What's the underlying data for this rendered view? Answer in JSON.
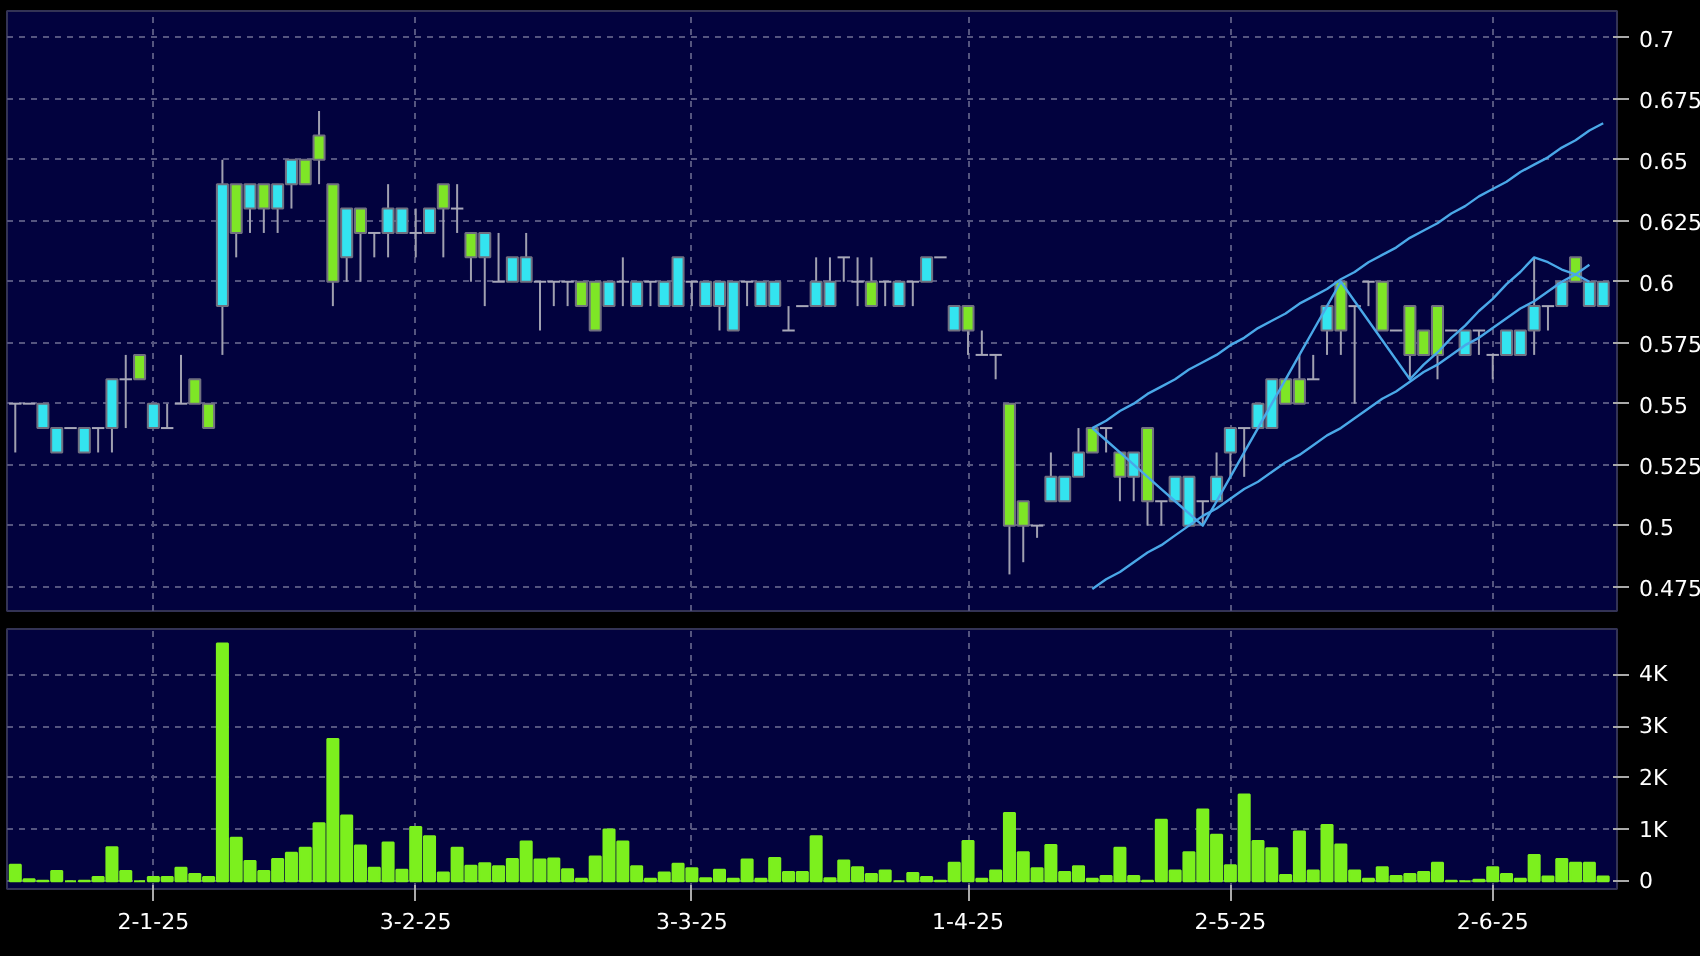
{
  "chart_data": [
    {
      "type": "candlestick",
      "categories": [
        null,
        null,
        null,
        null,
        null,
        null,
        null,
        null,
        null,
        null,
        null,
        null,
        null,
        null,
        null,
        null,
        null,
        null,
        null,
        null,
        null,
        null,
        null,
        null,
        null,
        null,
        null,
        null,
        null,
        null,
        null,
        null,
        null,
        null,
        null,
        null,
        null,
        null,
        null,
        null,
        null,
        null,
        null,
        null,
        null,
        null,
        null,
        null,
        null,
        null,
        null,
        null,
        null,
        null,
        null,
        null,
        null,
        null,
        null,
        null,
        null,
        null,
        null,
        null,
        null,
        null,
        null,
        null,
        null,
        null,
        null,
        null,
        null,
        null,
        null,
        null,
        null,
        null,
        null,
        null,
        null,
        null,
        null,
        null,
        null,
        null,
        null,
        null,
        null,
        null,
        null,
        null,
        null,
        null,
        null,
        null,
        null,
        null,
        null,
        null,
        null,
        null,
        null,
        null,
        null,
        null,
        null,
        null,
        null,
        null,
        null,
        null,
        null,
        null,
        null,
        null
      ],
      "ohlc": [
        [
          0.55,
          0.55,
          0.53,
          0.55
        ],
        [
          0.55,
          0.55,
          0.55,
          0.55
        ],
        [
          0.54,
          0.55,
          0.54,
          0.55
        ],
        [
          0.53,
          0.54,
          0.53,
          0.54
        ],
        [
          0.54,
          0.54,
          0.54,
          0.54
        ],
        [
          0.53,
          0.54,
          0.53,
          0.54
        ],
        [
          0.54,
          0.54,
          0.53,
          0.54
        ],
        [
          0.54,
          0.56,
          0.53,
          0.56
        ],
        [
          0.56,
          0.57,
          0.54,
          0.56
        ],
        [
          0.57,
          0.57,
          0.56,
          0.56
        ],
        [
          0.54,
          0.55,
          0.54,
          0.55
        ],
        [
          0.54,
          0.55,
          0.54,
          0.54
        ],
        [
          0.55,
          0.57,
          0.55,
          0.55
        ],
        [
          0.56,
          0.56,
          0.55,
          0.55
        ],
        [
          0.55,
          0.55,
          0.54,
          0.54
        ],
        [
          0.59,
          0.65,
          0.57,
          0.64
        ],
        [
          0.64,
          0.64,
          0.61,
          0.62
        ],
        [
          0.63,
          0.64,
          0.62,
          0.64
        ],
        [
          0.64,
          0.64,
          0.62,
          0.63
        ],
        [
          0.63,
          0.64,
          0.62,
          0.64
        ],
        [
          0.64,
          0.65,
          0.63,
          0.65
        ],
        [
          0.65,
          0.65,
          0.64,
          0.64
        ],
        [
          0.66,
          0.67,
          0.64,
          0.65
        ],
        [
          0.64,
          0.64,
          0.59,
          0.6
        ],
        [
          0.61,
          0.63,
          0.6,
          0.63
        ],
        [
          0.63,
          0.63,
          0.6,
          0.62
        ],
        [
          0.62,
          0.62,
          0.61,
          0.62
        ],
        [
          0.62,
          0.64,
          0.61,
          0.63
        ],
        [
          0.62,
          0.63,
          0.62,
          0.63
        ],
        [
          0.62,
          0.63,
          0.61,
          0.62
        ],
        [
          0.62,
          0.63,
          0.62,
          0.63
        ],
        [
          0.64,
          0.64,
          0.61,
          0.63
        ],
        [
          0.63,
          0.64,
          0.62,
          0.63
        ],
        [
          0.62,
          0.62,
          0.6,
          0.61
        ],
        [
          0.61,
          0.62,
          0.59,
          0.62
        ],
        [
          0.6,
          0.62,
          0.6,
          0.6
        ],
        [
          0.6,
          0.61,
          0.6,
          0.61
        ],
        [
          0.6,
          0.62,
          0.6,
          0.61
        ],
        [
          0.6,
          0.6,
          0.58,
          0.6
        ],
        [
          0.6,
          0.6,
          0.59,
          0.6
        ],
        [
          0.6,
          0.6,
          0.59,
          0.6
        ],
        [
          0.6,
          0.6,
          0.59,
          0.59
        ],
        [
          0.6,
          0.6,
          0.58,
          0.58
        ],
        [
          0.59,
          0.6,
          0.59,
          0.6
        ],
        [
          0.6,
          0.61,
          0.59,
          0.6
        ],
        [
          0.59,
          0.6,
          0.59,
          0.6
        ],
        [
          0.6,
          0.6,
          0.59,
          0.6
        ],
        [
          0.59,
          0.6,
          0.59,
          0.6
        ],
        [
          0.59,
          0.61,
          0.59,
          0.61
        ],
        [
          0.6,
          0.6,
          0.59,
          0.6
        ],
        [
          0.59,
          0.6,
          0.59,
          0.6
        ],
        [
          0.59,
          0.6,
          0.58,
          0.6
        ],
        [
          0.58,
          0.6,
          0.58,
          0.6
        ],
        [
          0.6,
          0.6,
          0.59,
          0.6
        ],
        [
          0.59,
          0.6,
          0.59,
          0.6
        ],
        [
          0.59,
          0.6,
          0.59,
          0.6
        ],
        [
          0.58,
          0.59,
          0.58,
          0.58
        ],
        [
          0.59,
          0.59,
          0.59,
          0.59
        ],
        [
          0.59,
          0.61,
          0.59,
          0.6
        ],
        [
          0.59,
          0.61,
          0.59,
          0.6
        ],
        [
          0.61,
          0.61,
          0.6,
          0.61
        ],
        [
          0.6,
          0.61,
          0.59,
          0.6
        ],
        [
          0.6,
          0.61,
          0.59,
          0.59
        ],
        [
          0.6,
          0.6,
          0.59,
          0.6
        ],
        [
          0.59,
          0.6,
          0.59,
          0.6
        ],
        [
          0.6,
          0.6,
          0.59,
          0.6
        ],
        [
          0.6,
          0.61,
          0.6,
          0.61
        ],
        [
          0.61,
          0.61,
          0.61,
          0.61
        ],
        [
          0.58,
          0.59,
          0.58,
          0.59
        ],
        [
          0.59,
          0.59,
          0.57,
          0.58
        ],
        [
          0.57,
          0.58,
          0.57,
          0.57
        ],
        [
          0.57,
          0.57,
          0.56,
          0.57
        ],
        [
          0.55,
          0.55,
          0.48,
          0.5
        ],
        [
          0.51,
          0.51,
          0.485,
          0.5
        ],
        [
          0.5,
          0.5,
          0.495,
          0.5
        ],
        [
          0.51,
          0.53,
          0.51,
          0.52
        ],
        [
          0.51,
          0.52,
          0.51,
          0.52
        ],
        [
          0.52,
          0.54,
          0.52,
          0.53
        ],
        [
          0.54,
          0.54,
          0.53,
          0.53
        ],
        [
          0.54,
          0.54,
          0.53,
          0.54
        ],
        [
          0.53,
          0.53,
          0.51,
          0.52
        ],
        [
          0.52,
          0.53,
          0.51,
          0.53
        ],
        [
          0.54,
          0.54,
          0.5,
          0.51
        ],
        [
          0.51,
          0.51,
          0.5,
          0.51
        ],
        [
          0.51,
          0.52,
          0.51,
          0.52
        ],
        [
          0.5,
          0.52,
          0.5,
          0.52
        ],
        [
          0.51,
          0.51,
          0.5,
          0.51
        ],
        [
          0.51,
          0.53,
          0.51,
          0.52
        ],
        [
          0.53,
          0.54,
          0.52,
          0.54
        ],
        [
          0.54,
          0.54,
          0.52,
          0.54
        ],
        [
          0.54,
          0.55,
          0.54,
          0.55
        ],
        [
          0.54,
          0.56,
          0.54,
          0.56
        ],
        [
          0.56,
          0.56,
          0.55,
          0.55
        ],
        [
          0.56,
          0.57,
          0.55,
          0.55
        ],
        [
          0.56,
          0.57,
          0.56,
          0.56
        ],
        [
          0.58,
          0.59,
          0.57,
          0.59
        ],
        [
          0.6,
          0.6,
          0.57,
          0.58
        ],
        [
          0.59,
          0.59,
          0.55,
          0.59
        ],
        [
          0.6,
          0.6,
          0.59,
          0.6
        ],
        [
          0.6,
          0.6,
          0.58,
          0.58
        ],
        [
          0.58,
          0.58,
          0.58,
          0.58
        ],
        [
          0.59,
          0.59,
          0.56,
          0.57
        ],
        [
          0.58,
          0.58,
          0.57,
          0.57
        ],
        [
          0.59,
          0.59,
          0.56,
          0.57
        ],
        [
          0.58,
          0.58,
          0.58,
          0.58
        ],
        [
          0.57,
          0.58,
          0.57,
          0.58
        ],
        [
          0.58,
          0.58,
          0.57,
          0.58
        ],
        [
          0.57,
          0.57,
          0.56,
          0.57
        ],
        [
          0.57,
          0.58,
          0.57,
          0.58
        ],
        [
          0.57,
          0.58,
          0.57,
          0.58
        ],
        [
          0.58,
          0.61,
          0.57,
          0.59
        ],
        [
          0.59,
          0.59,
          0.58,
          0.59
        ],
        [
          0.59,
          0.6,
          0.59,
          0.6
        ],
        [
          0.61,
          0.61,
          0.6,
          0.6
        ],
        [
          0.59,
          0.6,
          0.59,
          0.6
        ],
        [
          0.59,
          0.6,
          0.59,
          0.6
        ]
      ],
      "colors": [
        "#a8a8b8",
        "#a8a8b8",
        "#33e4f0",
        "#33e4f0",
        "#a8a8b8",
        "#33e4f0",
        "#a8a8b8",
        "#33e4f0",
        "#a8a8b8",
        "#7ee626",
        "#33e4f0",
        "#a8a8b8",
        "#a8a8b8",
        "#7ee626",
        "#7ee626",
        "#33e4f0",
        "#7ee626",
        "#33e4f0",
        "#7ee626",
        "#33e4f0",
        "#33e4f0",
        "#7ee626",
        "#7ee626",
        "#7ee626",
        "#33e4f0",
        "#7ee626",
        "#a8a8b8",
        "#33e4f0",
        "#33e4f0",
        "#a8a8b8",
        "#33e4f0",
        "#7ee626",
        "#a8a8b8",
        "#7ee626",
        "#33e4f0",
        "#a8a8b8",
        "#33e4f0",
        "#33e4f0",
        "#a8a8b8",
        "#a8a8b8",
        "#a8a8b8",
        "#7ee626",
        "#7ee626",
        "#33e4f0",
        "#a8a8b8",
        "#33e4f0",
        "#a8a8b8",
        "#33e4f0",
        "#33e4f0",
        "#a8a8b8",
        "#33e4f0",
        "#33e4f0",
        "#33e4f0",
        "#a8a8b8",
        "#33e4f0",
        "#33e4f0",
        "#a8a8b8",
        "#a8a8b8",
        "#33e4f0",
        "#33e4f0",
        "#a8a8b8",
        "#a8a8b8",
        "#7ee626",
        "#a8a8b8",
        "#33e4f0",
        "#a8a8b8",
        "#33e4f0",
        "#a8a8b8",
        "#33e4f0",
        "#7ee626",
        "#a8a8b8",
        "#a8a8b8",
        "#7ee626",
        "#7ee626",
        "#a8a8b8",
        "#33e4f0",
        "#33e4f0",
        "#33e4f0",
        "#7ee626",
        "#a8a8b8",
        "#7ee626",
        "#33e4f0",
        "#7ee626",
        "#a8a8b8",
        "#33e4f0",
        "#33e4f0",
        "#a8a8b8",
        "#33e4f0",
        "#33e4f0",
        "#a8a8b8",
        "#33e4f0",
        "#33e4f0",
        "#7ee626",
        "#7ee626",
        "#a8a8b8",
        "#33e4f0",
        "#7ee626",
        "#a8a8b8",
        "#a8a8b8",
        "#7ee626",
        "#a8a8b8",
        "#7ee626",
        "#7ee626",
        "#7ee626",
        "#a8a8b8",
        "#33e4f0",
        "#a8a8b8",
        "#a8a8b8",
        "#33e4f0",
        "#33e4f0",
        "#33e4f0",
        "#a8a8b8",
        "#33e4f0",
        "#7ee626",
        "#33e4f0",
        "#33e4f0"
      ],
      "series": [
        {
          "type": "line",
          "color": "#4aa8e8",
          "values": [
            null,
            null,
            null,
            null,
            null,
            null,
            null,
            null,
            null,
            null,
            null,
            null,
            null,
            null,
            null,
            null,
            null,
            null,
            null,
            null,
            null,
            null,
            null,
            null,
            null,
            null,
            null,
            null,
            null,
            null,
            null,
            null,
            null,
            null,
            null,
            null,
            null,
            null,
            null,
            null,
            null,
            null,
            null,
            null,
            null,
            null,
            null,
            null,
            null,
            null,
            null,
            null,
            null,
            null,
            null,
            null,
            null,
            null,
            null,
            null,
            null,
            null,
            null,
            null,
            null,
            null,
            null,
            null,
            null,
            null,
            null,
            null,
            null,
            null,
            null,
            null,
            null,
            null,
            0.54,
            0.543,
            0.547,
            0.55,
            0.554,
            0.557,
            0.56,
            0.564,
            0.567,
            0.57,
            0.574,
            0.577,
            0.581,
            0.584,
            0.587,
            0.591,
            0.594,
            0.597,
            0.601,
            0.604,
            0.608,
            0.611,
            0.614,
            0.618,
            0.621,
            0.624,
            0.628,
            0.631,
            0.635,
            0.638,
            0.641,
            0.645,
            0.648,
            0.651,
            0.655,
            0.658,
            0.662,
            0.665
          ]
        },
        {
          "type": "line",
          "color": "#4aa8e8",
          "values": [
            null,
            null,
            null,
            null,
            null,
            null,
            null,
            null,
            null,
            null,
            null,
            null,
            null,
            null,
            null,
            null,
            null,
            null,
            null,
            null,
            null,
            null,
            null,
            null,
            null,
            null,
            null,
            null,
            null,
            null,
            null,
            null,
            null,
            null,
            null,
            null,
            null,
            null,
            null,
            null,
            null,
            null,
            null,
            null,
            null,
            null,
            null,
            null,
            null,
            null,
            null,
            null,
            null,
            null,
            null,
            null,
            null,
            null,
            null,
            null,
            null,
            null,
            null,
            null,
            null,
            null,
            null,
            null,
            null,
            null,
            null,
            null,
            null,
            null,
            null,
            null,
            null,
            null,
            0.474,
            0.478,
            0.481,
            0.485,
            0.489,
            0.492,
            0.496,
            0.5,
            0.504,
            0.507,
            0.511,
            0.515,
            0.518,
            0.522,
            0.526,
            0.529,
            0.533,
            0.537,
            0.54,
            0.544,
            0.548,
            0.552,
            0.555,
            0.559,
            0.563,
            0.566,
            0.57,
            0.574,
            0.577,
            0.581,
            0.585,
            0.589,
            0.592,
            0.596,
            0.6,
            0.603,
            0.607,
            null
          ]
        },
        {
          "type": "line",
          "color": "#4aa8e8",
          "values": [
            null,
            null,
            null,
            null,
            null,
            null,
            null,
            null,
            null,
            null,
            null,
            null,
            null,
            null,
            null,
            null,
            null,
            null,
            null,
            null,
            null,
            null,
            null,
            null,
            null,
            null,
            null,
            null,
            null,
            null,
            null,
            null,
            null,
            null,
            null,
            null,
            null,
            null,
            null,
            null,
            null,
            null,
            null,
            null,
            null,
            null,
            null,
            null,
            null,
            null,
            null,
            null,
            null,
            null,
            null,
            null,
            null,
            null,
            null,
            null,
            null,
            null,
            null,
            null,
            null,
            null,
            null,
            null,
            null,
            null,
            null,
            null,
            null,
            null,
            null,
            null,
            null,
            null,
            0.54,
            0.535,
            0.53,
            0.525,
            0.52,
            0.515,
            0.51,
            0.505,
            0.5,
            0.51,
            0.52,
            0.53,
            0.54,
            0.55,
            0.56,
            0.57,
            0.58,
            0.59,
            0.6,
            0.592,
            0.584,
            0.576,
            0.568,
            0.56,
            0.566,
            0.571,
            0.577,
            0.582,
            0.588,
            0.593,
            0.599,
            0.604,
            0.61,
            0.608,
            0.605,
            0.603,
            0.6,
            null
          ]
        }
      ],
      "ylim": [
        0.465,
        0.711
      ],
      "yticks": [
        0.475,
        0.5,
        0.525,
        0.55,
        0.575,
        0.6,
        0.625,
        0.65,
        0.675,
        0.7
      ],
      "grid": true,
      "tick_labels": "y"
    },
    {
      "type": "bar",
      "color": "#7cf01e",
      "categories": [
        null,
        null,
        null,
        null,
        null,
        null,
        null,
        null,
        null,
        null,
        "2-1-25",
        null,
        null,
        null,
        null,
        null,
        null,
        null,
        null,
        null,
        null,
        null,
        null,
        null,
        null,
        null,
        null,
        null,
        null,
        "3-2-25",
        null,
        null,
        null,
        null,
        null,
        null,
        null,
        null,
        null,
        null,
        null,
        null,
        null,
        null,
        null,
        null,
        null,
        null,
        null,
        "3-3-25",
        null,
        null,
        null,
        null,
        null,
        null,
        null,
        null,
        null,
        null,
        null,
        null,
        null,
        null,
        null,
        null,
        null,
        null,
        null,
        "1-4-25",
        null,
        null,
        null,
        null,
        null,
        null,
        null,
        null,
        null,
        null,
        null,
        null,
        null,
        null,
        null,
        null,
        null,
        null,
        "2-5-25",
        null,
        null,
        null,
        null,
        null,
        null,
        null,
        null,
        null,
        null,
        null,
        null,
        null,
        null,
        null,
        null,
        null,
        null,
        "2-6-25",
        null,
        null,
        null,
        null,
        null,
        null,
        null,
        null
      ],
      "values": [
        320,
        40,
        10,
        200,
        0,
        10,
        80,
        660,
        200,
        0,
        80,
        80,
        260,
        140,
        80,
        4600,
        840,
        390,
        200,
        430,
        550,
        650,
        1120,
        2750,
        1270,
        690,
        260,
        750,
        220,
        1050,
        870,
        170,
        650,
        300,
        350,
        290,
        430,
        770,
        420,
        440,
        230,
        50,
        480,
        1000,
        770,
        290,
        50,
        170,
        340,
        250,
        60,
        220,
        50,
        420,
        50,
        450,
        180,
        180,
        870,
        60,
        400,
        270,
        140,
        210,
        0,
        160,
        80,
        10,
        360,
        780,
        50,
        210,
        1320,
        560,
        250,
        700,
        180,
        290,
        50,
        100,
        650,
        100,
        10,
        1190,
        210,
        560,
        1390,
        900,
        310,
        1680,
        780,
        640,
        120,
        960,
        210,
        1090,
        710,
        210,
        50,
        270,
        100,
        140,
        180,
        360,
        10,
        0,
        30,
        270,
        140,
        50,
        510,
        90,
        430,
        360,
        360,
        90
      ],
      "ylim": [
        -150,
        4880
      ],
      "yticks": [
        {
          "value": 0,
          "label": "0"
        },
        {
          "value": 1000,
          "label": "1K"
        },
        {
          "value": 2000,
          "label": "2K"
        },
        {
          "value": 3000,
          "label": "3K"
        },
        {
          "value": 4000,
          "label": "4K"
        }
      ],
      "grid": true
    }
  ]
}
